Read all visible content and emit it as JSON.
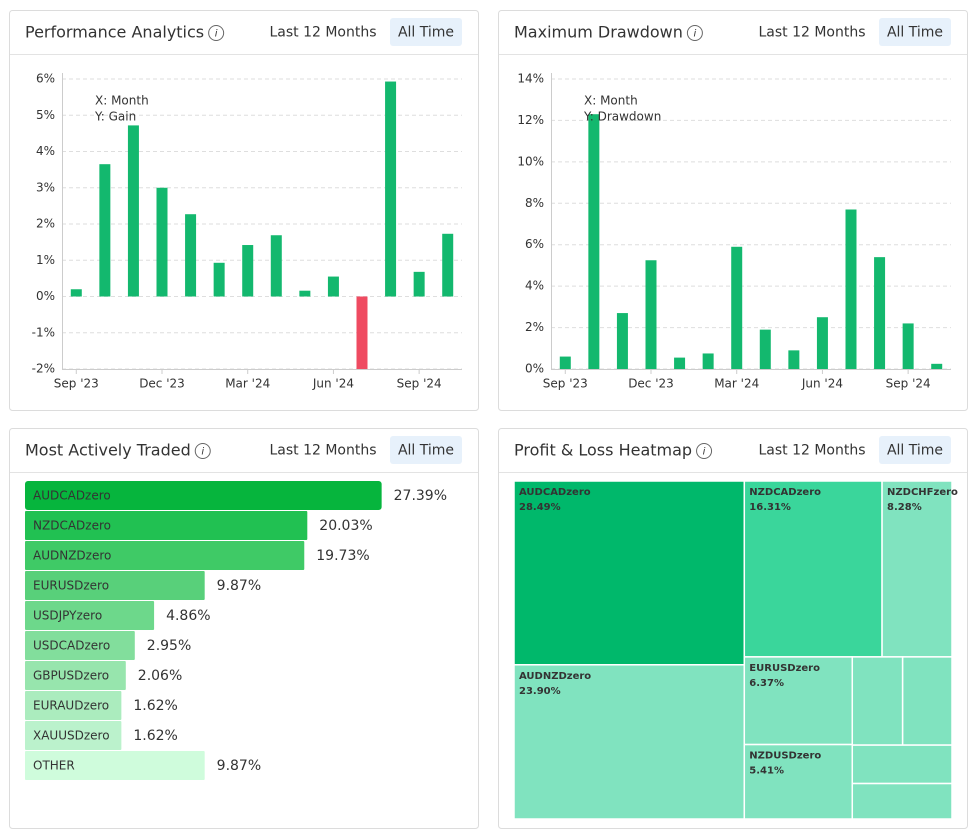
{
  "panels": [
    {
      "title": "Performance Analytics",
      "tabs": [
        "Last 12 Months",
        "All Time"
      ],
      "active_tab": 1
    },
    {
      "title": "Maximum Drawdown",
      "tabs": [
        "Last 12 Months",
        "All Time"
      ],
      "active_tab": 1
    },
    {
      "title": "Most Actively Traded",
      "tabs": [
        "Last 12 Months",
        "All Time"
      ],
      "active_tab": 1
    },
    {
      "title": "Profit & Loss Heatmap",
      "tabs": [
        "Last 12 Months",
        "All Time"
      ],
      "active_tab": 1
    }
  ],
  "chart_data": [
    {
      "type": "bar",
      "annotations": [
        "X: Month",
        "Y: Gain"
      ],
      "categories": [
        "Sep '23",
        null,
        null,
        "Dec '23",
        null,
        null,
        "Mar '24",
        null,
        null,
        "Jun '24",
        null,
        null,
        "Sep '24",
        null
      ],
      "values": [
        0.2,
        3.65,
        4.72,
        3.0,
        2.27,
        0.93,
        1.42,
        1.69,
        0.16,
        0.55,
        -2.0,
        5.93,
        0.68,
        1.73
      ],
      "color": "#13b86e",
      "negative_color": "#ef4b61",
      "ylim": [
        -2,
        6
      ],
      "yticks": [
        {
          "value": -2,
          "label": "-2%"
        },
        {
          "value": -1,
          "label": "-1%"
        },
        {
          "value": 0,
          "label": "0%"
        },
        {
          "value": 1,
          "label": "1%"
        },
        {
          "value": 2,
          "label": "2%"
        },
        {
          "value": 3,
          "label": "3%"
        },
        {
          "value": 4,
          "label": "4%"
        },
        {
          "value": 5,
          "label": "5%"
        },
        {
          "value": 6,
          "label": "6%"
        }
      ],
      "grid": true
    },
    {
      "type": "bar",
      "annotations": [
        "X: Month",
        "Y: Drawdown"
      ],
      "categories": [
        "Sep '23",
        null,
        null,
        "Dec '23",
        null,
        null,
        "Mar '24",
        null,
        null,
        "Jun '24",
        null,
        null,
        "Sep '24",
        null
      ],
      "values": [
        0.6,
        12.3,
        2.7,
        5.25,
        0.55,
        0.75,
        5.9,
        1.9,
        0.9,
        2.5,
        7.7,
        5.4,
        2.2,
        0.25
      ],
      "color": "#13b86e",
      "negative_color": "#ef4b61",
      "ylim": [
        0,
        14
      ],
      "yticks": [
        {
          "value": 0,
          "label": "0%"
        },
        {
          "value": 2,
          "label": "2%"
        },
        {
          "value": 4,
          "label": "4%"
        },
        {
          "value": 6,
          "label": "6%"
        },
        {
          "value": 8,
          "label": "8%"
        },
        {
          "value": 10,
          "label": "10%"
        },
        {
          "value": 12,
          "label": "12%"
        },
        {
          "value": 14,
          "label": "14%"
        }
      ],
      "grid": true
    },
    {
      "type": "hbar",
      "categories": [
        "AUDCADzero",
        "NZDCADzero",
        "AUDNZDzero",
        "EURUSDzero",
        "USDJPYzero",
        "USDCADzero",
        "GBPUSDzero",
        "EURAUDzero",
        "XAUUSDzero",
        "OTHER"
      ],
      "values": [
        27.39,
        20.03,
        19.73,
        9.87,
        4.86,
        2.95,
        2.06,
        1.62,
        1.62,
        9.87
      ],
      "value_labels": [
        "27.39%",
        "20.03%",
        "19.73%",
        "9.87%",
        "4.86%",
        "2.95%",
        "2.06%",
        "1.62%",
        "1.62%",
        "9.87%"
      ],
      "colors": [
        "#06b53d",
        "#21c152",
        "#3fca66",
        "#58d07a",
        "#6dd88b",
        "#82de9c",
        "#97e5ad",
        "#abecbe",
        "#bbf2cc",
        "#cffcdc"
      ]
    },
    {
      "type": "treemap",
      "categories": [
        "AUDCADzero",
        "NZDCADzero",
        "NZDCHFzero",
        "AUDNZDzero",
        "EURUSDzero",
        "NZDUSDzero",
        null,
        null,
        null,
        null
      ],
      "values": [
        28.49,
        16.31,
        8.28,
        23.9,
        6.37,
        5.41,
        2.99,
        2.93,
        2.58,
        2.38
      ],
      "value_labels": [
        "28.49%",
        "16.31%",
        "8.28%",
        "23.90%",
        "6.37%",
        "5.41%",
        null,
        null,
        null,
        null
      ],
      "colors": [
        "#00b86b",
        "#3ad69b",
        "#80e3bf",
        "#80e3bf",
        "#80e3bf",
        "#80e3bf",
        "#80e3bf",
        "#80e3bf",
        "#80e3bf",
        "#80e3bf"
      ]
    }
  ]
}
